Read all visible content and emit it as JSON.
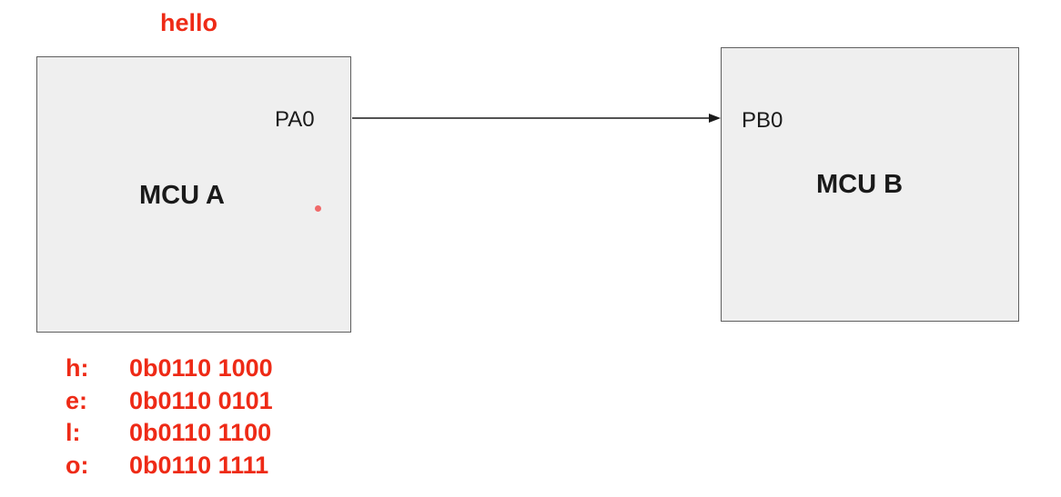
{
  "message": "hello",
  "mcu_a": {
    "title": "MCU A",
    "pin": "PA0"
  },
  "mcu_b": {
    "title": "MCU B",
    "pin": "PB0"
  },
  "encodings": [
    {
      "char": "h:",
      "binary": "0b0110 1000"
    },
    {
      "char": "e:",
      "binary": "0b0110 0101"
    },
    {
      "char": "l:",
      "binary": "0b0110 1100"
    },
    {
      "char": "o:",
      "binary": "0b0110 1111"
    }
  ],
  "colors": {
    "accent": "#ee2a16",
    "box_fill": "#efefef",
    "box_border": "#5f5f5f",
    "text": "#1a1a1a",
    "laser": "#f06a6a"
  }
}
